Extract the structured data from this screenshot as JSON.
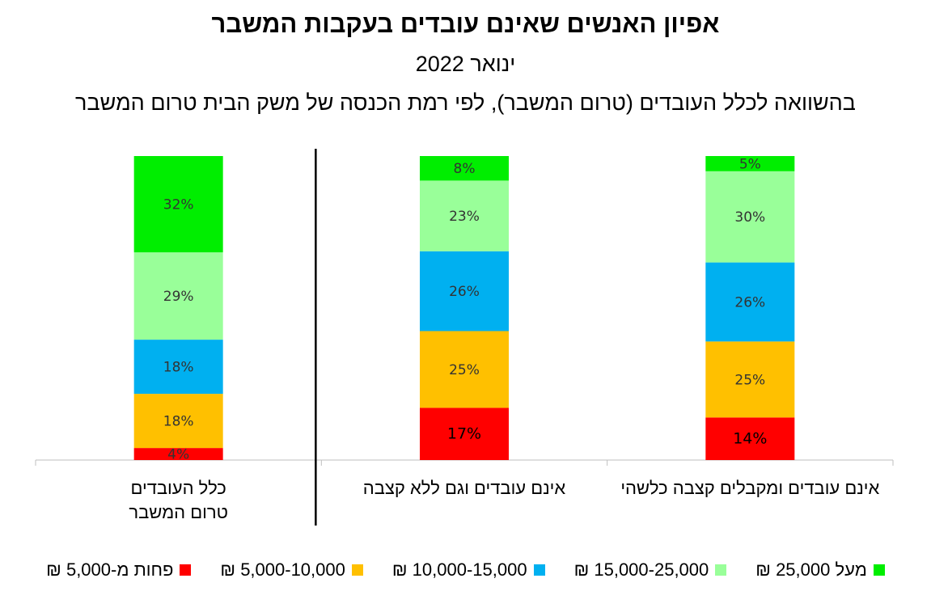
{
  "chart_data": {
    "type": "bar",
    "stacked": true,
    "title": "אפיון האנשים שאינם עובדים בעקבות המשבר",
    "subtitle": "ינואר 2022",
    "subtitle2": "בהשוואה לכלל העובדים (טרום המשבר), לפי רמת הכנסה של משק הבית טרום המשבר",
    "categories": [
      "אינם עובדים ומקבלים קצבה כלשהי",
      "אינם עובדים וגם ללא קצבה",
      "כלל העובדים טרום המשבר"
    ],
    "categories_lines": [
      [
        "אינם עובדים ומקבלים קצבה כלשהי"
      ],
      [
        "אינם עובדים וגם ללא קצבה"
      ],
      [
        "כלל העובדים",
        "טרום המשבר"
      ]
    ],
    "series": [
      {
        "name": "פחות מ-5,000 ₪",
        "color": "#ff0000",
        "values": [
          14,
          17,
          4
        ],
        "labels": [
          "14%",
          "17%",
          "4%"
        ]
      },
      {
        "name": "5,000-10,000 ₪",
        "color": "#ffc000",
        "values": [
          25,
          25,
          18
        ],
        "labels": [
          "25%",
          "25%",
          "18%"
        ]
      },
      {
        "name": "10,000-15,000 ₪",
        "color": "#00b0f0",
        "values": [
          26,
          26,
          18
        ],
        "labels": [
          "26%",
          "26%",
          "18%"
        ]
      },
      {
        "name": "15,000-25,000 ₪",
        "color": "#99ff99",
        "values": [
          30,
          23,
          29
        ],
        "labels": [
          "30%",
          "23%",
          "29%"
        ]
      },
      {
        "name": "מעל 25,000 ₪",
        "color": "#00ee00",
        "values": [
          5,
          8,
          32
        ],
        "labels": [
          "5%",
          "8%",
          "32%"
        ]
      }
    ],
    "ylim": [
      0,
      100
    ],
    "legend_position": "bottom",
    "grid": false
  }
}
